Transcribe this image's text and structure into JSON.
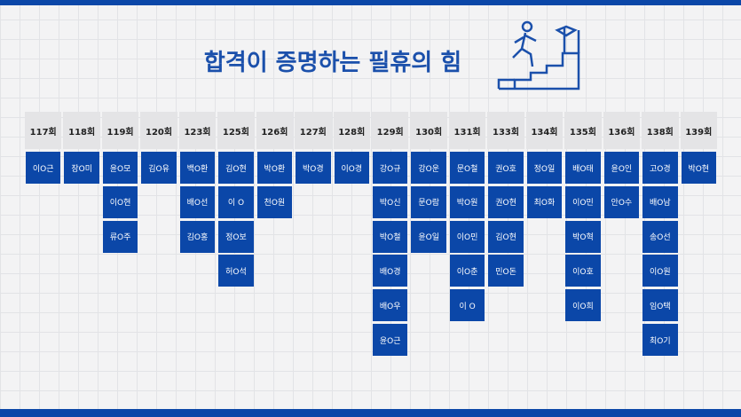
{
  "header": {
    "title": "합격이 증명하는 필휴의 힘"
  },
  "columns": [
    {
      "round": "117회",
      "names": [
        "이O근"
      ]
    },
    {
      "round": "118회",
      "names": [
        "장O미"
      ]
    },
    {
      "round": "119회",
      "names": [
        "윤O모",
        "이O현",
        "류O주"
      ]
    },
    {
      "round": "120회",
      "names": [
        "김O유"
      ]
    },
    {
      "round": "123회",
      "names": [
        "백O환",
        "배O선",
        "김O홍"
      ]
    },
    {
      "round": "125회",
      "names": [
        "김O현",
        "이 O",
        "정O보",
        "허O석"
      ]
    },
    {
      "round": "126회",
      "names": [
        "박O환",
        "천O원"
      ]
    },
    {
      "round": "127회",
      "names": [
        "박O경"
      ]
    },
    {
      "round": "128회",
      "names": [
        "이O경"
      ]
    },
    {
      "round": "129회",
      "names": [
        "강O규",
        "박O신",
        "박O철",
        "배O경",
        "배O우",
        "윤O근"
      ]
    },
    {
      "round": "130회",
      "names": [
        "강O운",
        "문O람",
        "윤O일"
      ]
    },
    {
      "round": "131회",
      "names": [
        "문O철",
        "박O원",
        "이O민",
        "이O춘",
        "이 O"
      ]
    },
    {
      "round": "133회",
      "names": [
        "권O호",
        "권O현",
        "김O현",
        "민O돈"
      ]
    },
    {
      "round": "134회",
      "names": [
        "정O일",
        "최O화"
      ]
    },
    {
      "round": "135회",
      "names": [
        "배O태",
        "이O민",
        "박O혁",
        "이O호",
        "이O희"
      ]
    },
    {
      "round": "136회",
      "names": [
        "윤O인",
        "안O수"
      ]
    },
    {
      "round": "138회",
      "names": [
        "고O경",
        "배O남",
        "송O선",
        "이O원",
        "임O택",
        "최O기"
      ]
    },
    {
      "round": "139회",
      "names": [
        "박O현"
      ]
    }
  ]
}
